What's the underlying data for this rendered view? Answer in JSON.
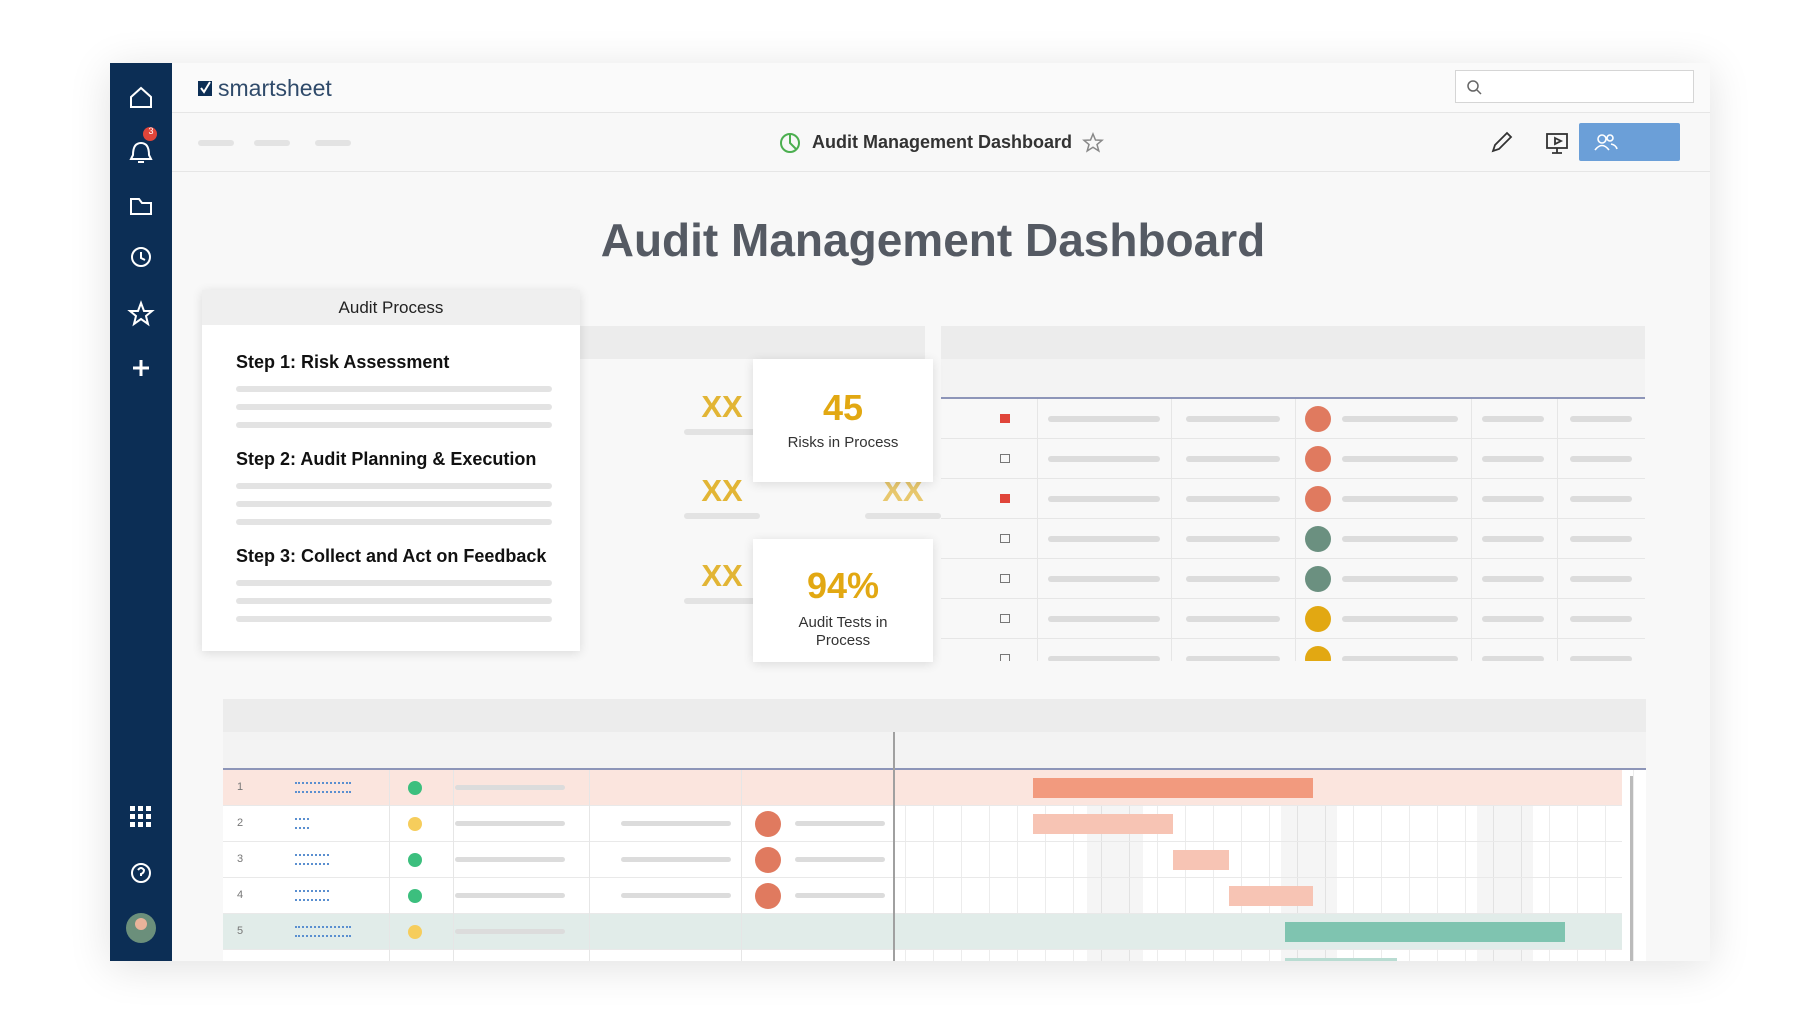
{
  "app": {
    "brand": "smartsheet",
    "notification_count": "3"
  },
  "toolbar": {
    "title": "Audit Management Dashboard"
  },
  "dashboard": {
    "title": "Audit Management Dashboard",
    "audit_process": {
      "title": "Audit Process",
      "steps": [
        "Step 1: Risk Assessment",
        "Step 2: Audit Planning & Execution",
        "Step 3: Collect and Act on Feedback"
      ]
    },
    "placeholders": [
      "XX",
      "XX",
      "XX",
      "XX"
    ],
    "metrics": [
      {
        "value": "45",
        "label": "Risks in Process"
      },
      {
        "value": "94%",
        "label": "Audit Tests in Process"
      }
    ],
    "gantt": {
      "rows": [
        "1",
        "2",
        "3",
        "4",
        "5"
      ]
    }
  }
}
